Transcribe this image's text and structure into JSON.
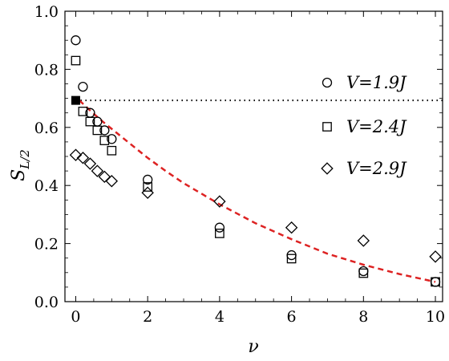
{
  "chart_data": {
    "type": "scatter",
    "xlabel": "ν",
    "ylabel": "S",
    "ylabel_sub": "L/2",
    "xlim": [
      -0.3,
      10.2
    ],
    "ylim": [
      0.0,
      1.0
    ],
    "x_ticks": [
      0,
      2,
      4,
      6,
      8,
      10
    ],
    "x_tick_labels": [
      "0",
      "2",
      "4",
      "6",
      "8",
      "10"
    ],
    "y_ticks": [
      0.0,
      0.2,
      0.4,
      0.6,
      0.8,
      1.0
    ],
    "y_tick_labels": [
      "0.0",
      "0.2",
      "0.4",
      "0.6",
      "0.8",
      "1.0"
    ],
    "grid": false,
    "legend_position": "right",
    "series": [
      {
        "name": "V=1.9J",
        "marker": "circle",
        "x": [
          0,
          0.2,
          0.4,
          0.6,
          0.8,
          1,
          2,
          4,
          6,
          8,
          10
        ],
        "y": [
          0.9,
          0.74,
          0.65,
          0.62,
          0.59,
          0.56,
          0.42,
          0.255,
          0.16,
          0.105,
          0.068
        ]
      },
      {
        "name": "V=2.4J",
        "marker": "square",
        "x": [
          0,
          0.2,
          0.4,
          0.6,
          0.8,
          1,
          2,
          4,
          6,
          8,
          10
        ],
        "y": [
          0.83,
          0.655,
          0.62,
          0.59,
          0.555,
          0.52,
          0.395,
          0.235,
          0.148,
          0.098,
          0.068
        ]
      },
      {
        "name": "V=2.9J",
        "marker": "diamond",
        "x": [
          0,
          0.2,
          0.4,
          0.6,
          0.8,
          1,
          2,
          4,
          6,
          8,
          10
        ],
        "y": [
          0.505,
          0.495,
          0.475,
          0.45,
          0.43,
          0.415,
          0.375,
          0.345,
          0.255,
          0.21,
          0.155
        ]
      }
    ],
    "reference_line": {
      "y": 0.693,
      "style": "dotted",
      "color": "#000000"
    },
    "filled_point": {
      "x": 0,
      "y": 0.693,
      "marker": "square",
      "color": "#000000"
    },
    "fit_curve": {
      "style": "dashed",
      "color": "#dd2222",
      "x": [
        0.1,
        0.3,
        0.5,
        0.75,
        1,
        1.5,
        2,
        2.5,
        3,
        4,
        5,
        6,
        7,
        8,
        9,
        10
      ],
      "y": [
        0.693,
        0.67,
        0.647,
        0.62,
        0.595,
        0.545,
        0.495,
        0.45,
        0.408,
        0.335,
        0.27,
        0.215,
        0.165,
        0.127,
        0.095,
        0.068
      ]
    }
  }
}
